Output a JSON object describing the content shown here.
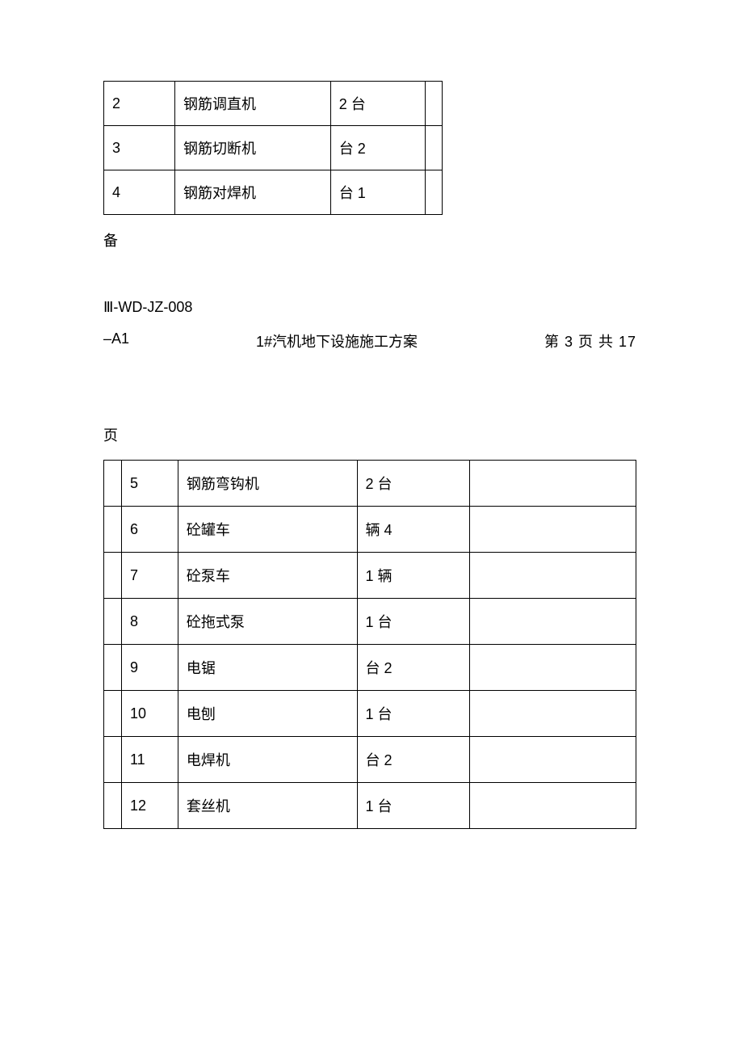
{
  "table1": {
    "rows": [
      {
        "num": "2",
        "name": "钢筋调直机",
        "qty": "2 台"
      },
      {
        "num": "3",
        "name": "钢筋切断机",
        "qty": "台 2"
      },
      {
        "num": "4",
        "name": "钢筋对焊机",
        "qty": " 台 1"
      }
    ]
  },
  "loose_bei": "备",
  "doc_code": "Ⅲ-WD-JZ-008",
  "header": {
    "left": "–A1",
    "center": "1#汽机地下设施施工方案",
    "right": "第  3  页  共  17"
  },
  "loose_page": "页",
  "table2": {
    "rows": [
      {
        "num": "5",
        "name": "钢筋弯钩机",
        "qty": "2 台"
      },
      {
        "num": "6",
        "name": " 砼罐车",
        "qty": " 辆  4"
      },
      {
        "num": "7",
        "name": "砼泵车",
        "qty": "  1 辆"
      },
      {
        "num": "8",
        "name": "砼拖式泵",
        "qty": "1 台"
      },
      {
        "num": "9",
        "name": "电锯",
        "qty": "台  2"
      },
      {
        "num": "10",
        "name": "电刨",
        "qty": " 1 台"
      },
      {
        "num": "11",
        "name": "电焊机",
        "qty": "台  2"
      },
      {
        "num": "12",
        "name": "套丝机",
        "qty": " 1 台"
      }
    ]
  }
}
